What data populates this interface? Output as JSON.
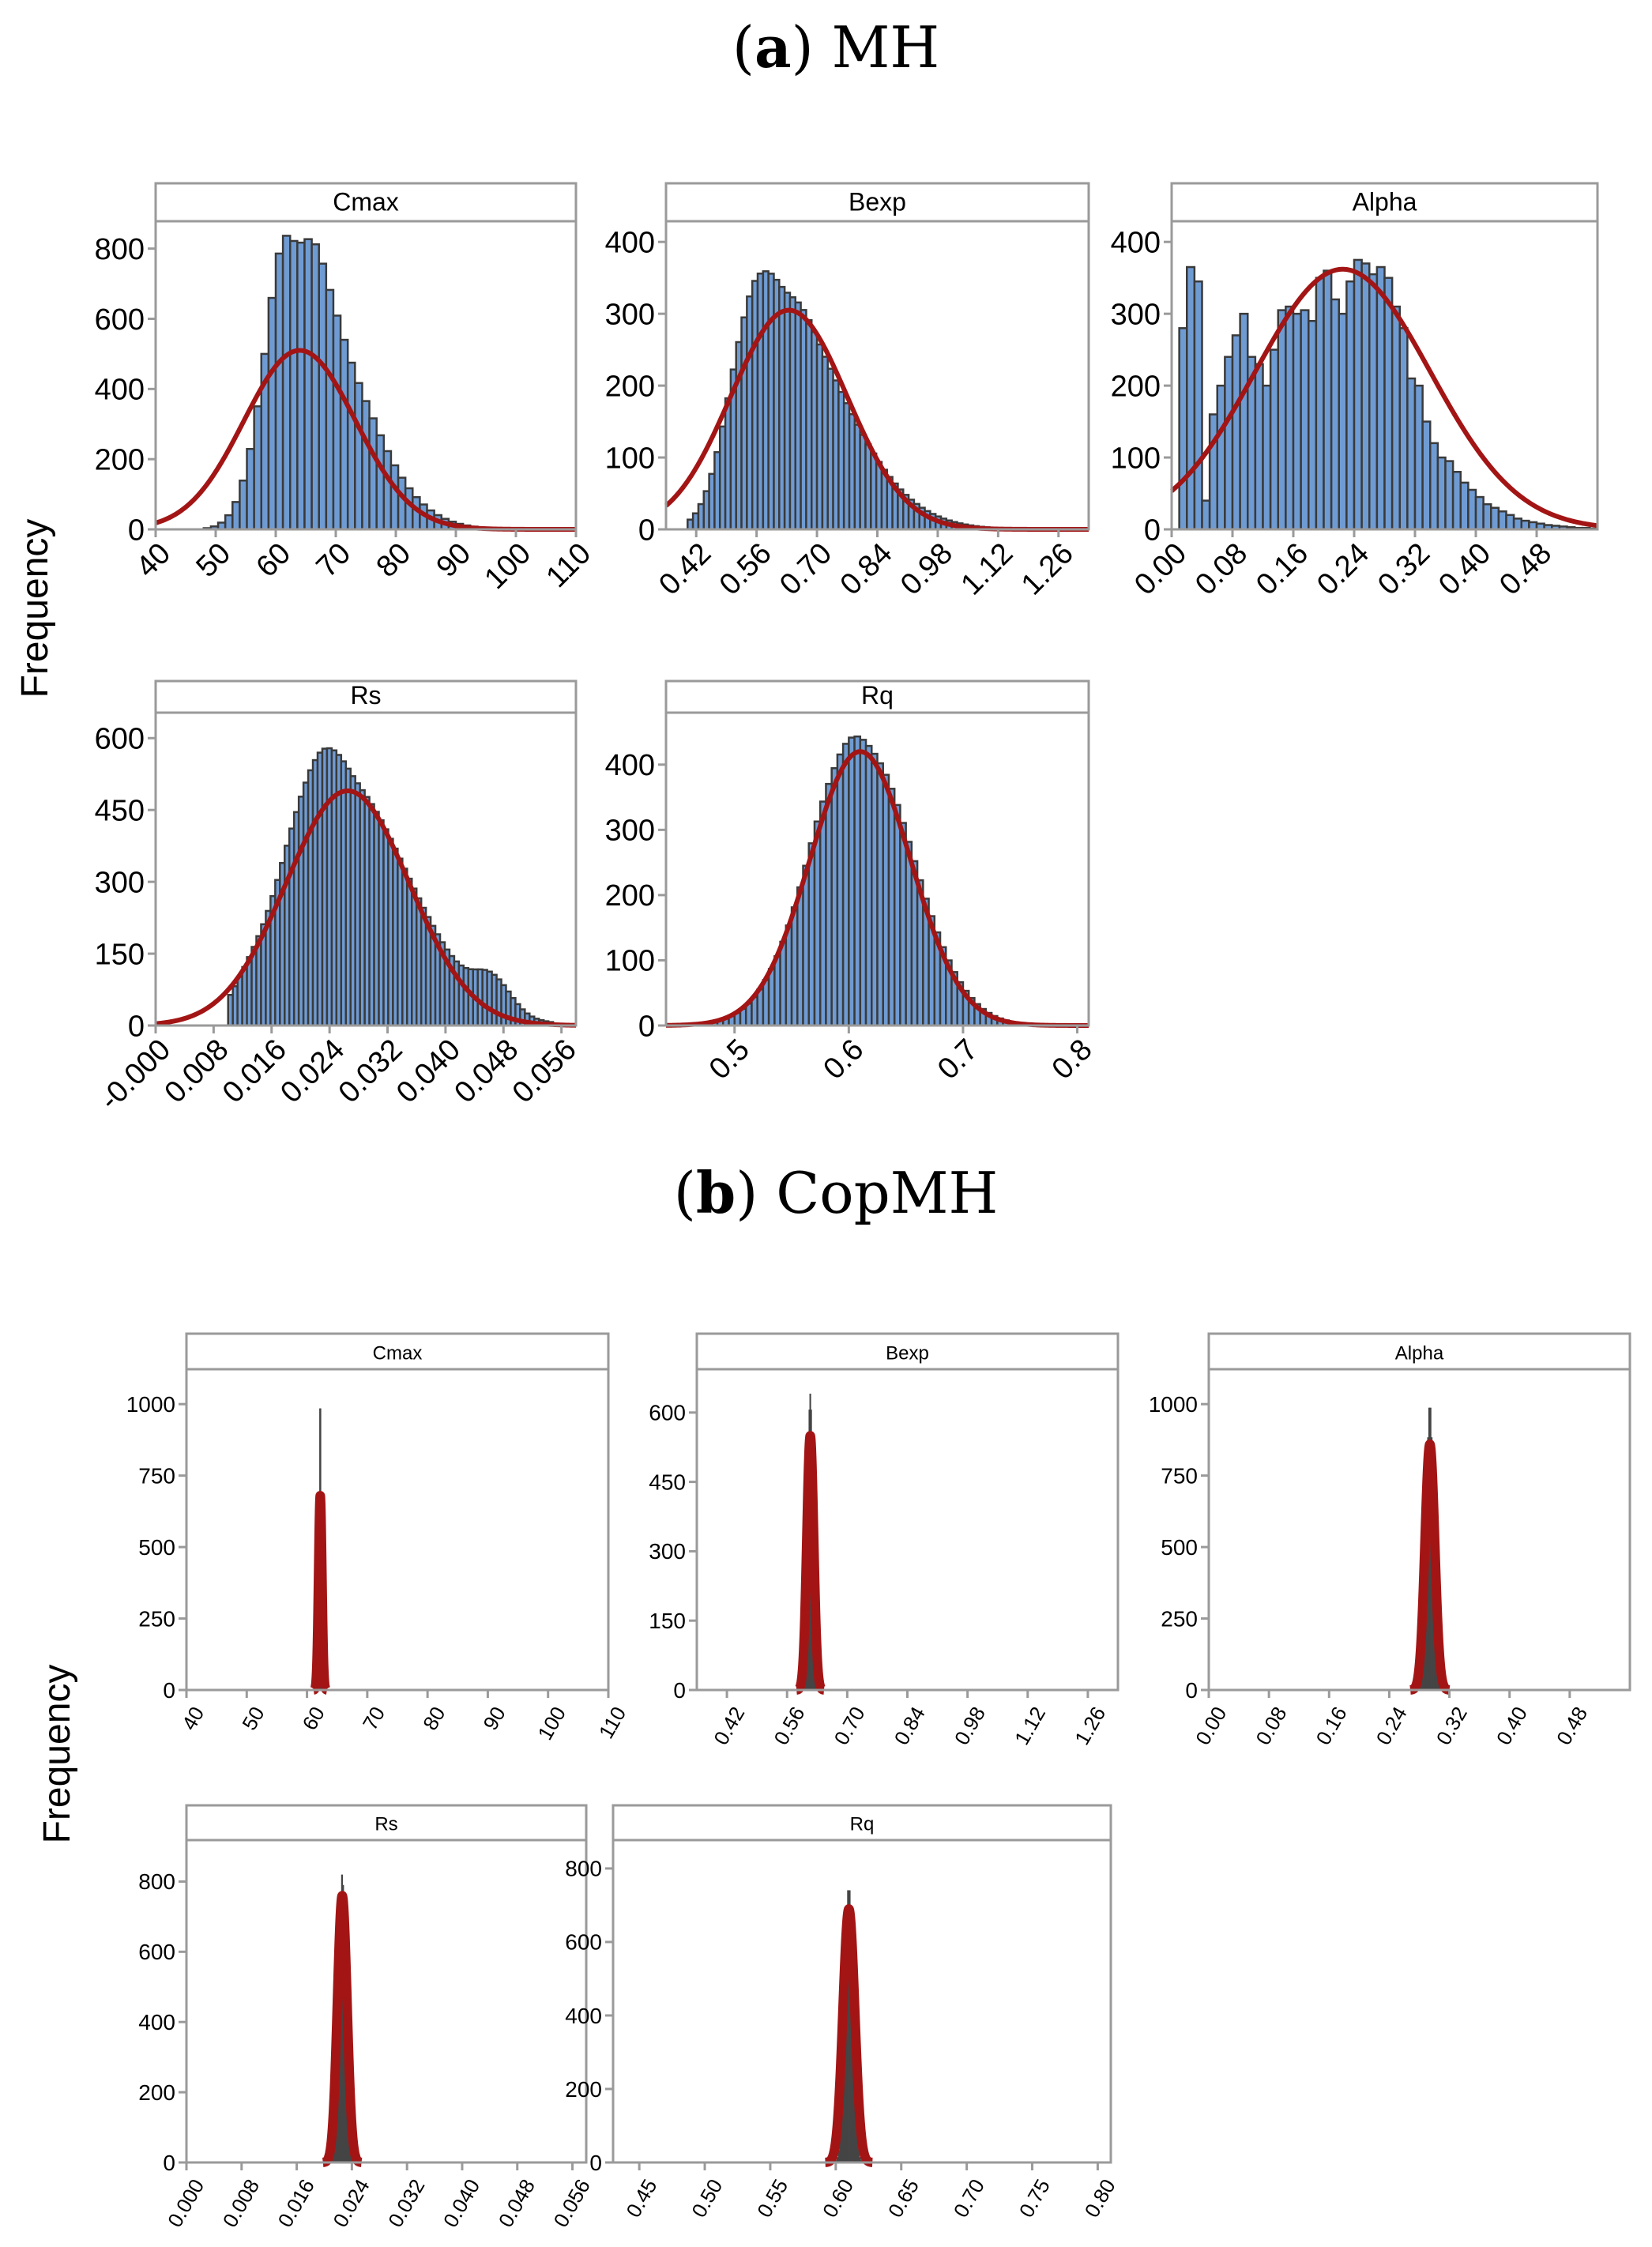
{
  "figure": {
    "ylabel": "Frequency",
    "colors": {
      "bar_fill": "#6f9bd3",
      "bar_stroke": "#3a3a3a",
      "spike_stroke": "#454545",
      "fit_curve": "#a31515",
      "frame": "#9a9a9a",
      "header_bg": "#ffffff",
      "text": "#000000"
    }
  },
  "sections": [
    {
      "id": "a",
      "letter": "a",
      "name": "MH"
    },
    {
      "id": "b",
      "letter": "b",
      "name": "CopMH"
    }
  ],
  "chart_data": [
    {
      "section": "a",
      "type": "bar",
      "title": "Cmax",
      "xlabel": "",
      "ylabel": "Frequency",
      "xlim": [
        40,
        110
      ],
      "ylim": [
        0,
        860
      ],
      "xticks": [
        40,
        50,
        60,
        70,
        80,
        90,
        100,
        110
      ],
      "xtick_labels": [
        "40",
        "50",
        "60",
        "70",
        "80",
        "90",
        "100",
        "110"
      ],
      "yticks": [
        0,
        200,
        400,
        600,
        800
      ],
      "ytick_labels": [
        "0",
        "200",
        "400",
        "600",
        "800"
      ],
      "bins": {
        "start": 48,
        "end": 104,
        "width": 1.2
      },
      "hist": {
        "kind": "skew",
        "mode": 62.5,
        "sd_left": 4.2,
        "sd_right": 10.0,
        "peak": 815,
        "bumps": [
          [
            61.5,
            40
          ],
          [
            63.0,
            -40
          ],
          [
            60.5,
            30
          ],
          [
            67.0,
            30
          ],
          [
            73.0,
            -15
          ],
          [
            66.0,
            40
          ]
        ]
      },
      "fit": {
        "mean": 64,
        "sd": 9.3,
        "peak": 510
      }
    },
    {
      "section": "a",
      "type": "bar",
      "title": "Bexp",
      "xlabel": "",
      "ylabel": "Frequency",
      "xlim": [
        0.35,
        1.33
      ],
      "ylim": [
        0,
        420
      ],
      "xticks": [
        0.42,
        0.56,
        0.7,
        0.84,
        0.98,
        1.12,
        1.26
      ],
      "xtick_labels": [
        "0.42",
        "0.56",
        "0.70",
        "0.84",
        "0.98",
        "1.12",
        "1.26"
      ],
      "yticks": [
        0,
        100,
        200,
        300,
        400
      ],
      "ytick_labels": [
        "0",
        "100",
        "200",
        "300",
        "400"
      ],
      "bins": {
        "start": 0.4,
        "end": 1.2,
        "width": 0.0125
      },
      "hist": {
        "kind": "skew",
        "mode": 0.565,
        "sd_left": 0.062,
        "sd_right": 0.17,
        "peak": 360,
        "bumps": [
          [
            0.545,
            -20
          ],
          [
            0.585,
            15
          ],
          [
            0.62,
            -15
          ],
          [
            0.66,
            10
          ]
        ]
      },
      "fit": {
        "mean": 0.635,
        "sd": 0.135,
        "peak": 305
      }
    },
    {
      "section": "a",
      "type": "bar",
      "title": "Alpha",
      "xlabel": "",
      "ylabel": "Frequency",
      "xlim": [
        0.0,
        0.56
      ],
      "ylim": [
        0,
        420
      ],
      "xticks": [
        0.0,
        0.08,
        0.16,
        0.24,
        0.32,
        0.4,
        0.48
      ],
      "xtick_labels": [
        "0.00",
        "0.08",
        "0.16",
        "0.24",
        "0.32",
        "0.40",
        "0.48"
      ],
      "yticks": [
        0,
        100,
        200,
        300,
        400
      ],
      "ytick_labels": [
        "0",
        "100",
        "200",
        "300",
        "400"
      ],
      "bins": {
        "start": 0.0,
        "end": 0.56,
        "width": 0.01
      },
      "hist": {
        "kind": "list",
        "values": [
          0,
          280,
          365,
          345,
          40,
          160,
          200,
          240,
          270,
          300,
          240,
          230,
          200,
          250,
          305,
          310,
          300,
          305,
          290,
          350,
          360,
          320,
          300,
          345,
          375,
          370,
          355,
          365,
          350,
          310,
          280,
          210,
          200,
          150,
          120,
          100,
          95,
          80,
          65,
          55,
          45,
          35,
          30,
          25,
          20,
          15,
          12,
          10,
          8,
          6,
          5,
          4,
          3,
          2,
          2,
          1
        ]
      },
      "fit": {
        "mean": 0.225,
        "sd": 0.115,
        "peak": 362
      }
    },
    {
      "section": "a",
      "type": "bar",
      "title": "Rs",
      "xlabel": "",
      "ylabel": "Frequency",
      "xlim": [
        0.0,
        0.058
      ],
      "ylim": [
        0,
        640
      ],
      "xticks": [
        0.0,
        0.008,
        0.016,
        0.024,
        0.032,
        0.04,
        0.048,
        0.056
      ],
      "xtick_labels": [
        "-0.000",
        "0.008",
        "0.016",
        "0.024",
        "0.032",
        "0.040",
        "0.048",
        "0.056"
      ],
      "yticks": [
        0,
        150,
        300,
        450,
        600
      ],
      "ytick_labels": [
        "0",
        "150",
        "300",
        "450",
        "600"
      ],
      "bins": {
        "start": 0.01,
        "end": 0.055,
        "width": 0.00065
      },
      "hist": {
        "kind": "skew",
        "mode": 0.0235,
        "sd_left": 0.006,
        "sd_right": 0.0105,
        "peak": 560,
        "bumps": [
          [
            0.0245,
            25
          ],
          [
            0.027,
            -15
          ],
          [
            0.0455,
            40
          ],
          [
            0.048,
            30
          ],
          [
            0.0125,
            25
          ]
        ]
      },
      "fit": {
        "mean": 0.0265,
        "sd": 0.0085,
        "peak": 490
      }
    },
    {
      "section": "a",
      "type": "bar",
      "title": "Rq",
      "xlabel": "",
      "ylabel": "Frequency",
      "xlim": [
        0.44,
        0.81
      ],
      "ylim": [
        0,
        470
      ],
      "xticks": [
        0.5,
        0.6,
        0.7,
        0.8
      ],
      "xtick_labels": [
        "0.5",
        "0.6",
        "0.7",
        "0.8"
      ],
      "yticks": [
        0,
        100,
        200,
        300,
        400
      ],
      "ytick_labels": [
        "0",
        "100",
        "200",
        "300",
        "400"
      ],
      "bins": {
        "start": 0.47,
        "end": 0.79,
        "width": 0.005
      },
      "hist": {
        "kind": "skew",
        "mode": 0.61,
        "sd_left": 0.043,
        "sd_right": 0.045,
        "peak": 440,
        "bumps": [
          [
            0.6,
            10
          ],
          [
            0.62,
            -8
          ],
          [
            0.575,
            12
          ]
        ]
      },
      "fit": {
        "mean": 0.61,
        "sd": 0.044,
        "peak": 420
      }
    },
    {
      "section": "b",
      "type": "bar",
      "title": "Cmax",
      "xlabel": "",
      "ylabel": "Frequency",
      "xlim": [
        40,
        110
      ],
      "ylim": [
        0,
        1100
      ],
      "xticks": [
        40,
        50,
        60,
        70,
        80,
        90,
        100,
        110
      ],
      "xtick_labels": [
        "40",
        "50",
        "60",
        "70",
        "80",
        "90",
        "100",
        "110"
      ],
      "yticks": [
        0,
        250,
        500,
        750,
        1000
      ],
      "ytick_labels": [
        "0",
        "250",
        "500",
        "750",
        "1000"
      ],
      "bins": {
        "start": 61.2,
        "end": 63.2,
        "width": 0.1
      },
      "hist": {
        "kind": "skew",
        "mode": 62.2,
        "sd_left": 0.15,
        "sd_right": 0.15,
        "peak": 1040,
        "bumps": []
      },
      "fit": {
        "mean": 62.2,
        "sd": 0.28,
        "peak": 680
      }
    },
    {
      "section": "b",
      "type": "bar",
      "title": "Bexp",
      "xlabel": "",
      "ylabel": "Frequency",
      "xlim": [
        0.35,
        1.33
      ],
      "ylim": [
        0,
        680
      ],
      "xticks": [
        0.42,
        0.56,
        0.7,
        0.84,
        0.98,
        1.12,
        1.26
      ],
      "xtick_labels": [
        "0.42",
        "0.56",
        "0.70",
        "0.84",
        "0.98",
        "1.12",
        "1.26"
      ],
      "yticks": [
        0,
        150,
        300,
        450,
        600
      ],
      "ytick_labels": [
        "0",
        "150",
        "300",
        "450",
        "600"
      ],
      "bins": {
        "start": 0.575,
        "end": 0.655,
        "width": 0.002
      },
      "hist": {
        "kind": "skew",
        "mode": 0.614,
        "sd_left": 0.006,
        "sd_right": 0.006,
        "peak": 640,
        "bumps": []
      },
      "fit": {
        "mean": 0.614,
        "sd": 0.008,
        "peak": 550
      }
    },
    {
      "section": "b",
      "type": "bar",
      "title": "Alpha",
      "xlabel": "",
      "ylabel": "Frequency",
      "xlim": [
        0.0,
        0.56
      ],
      "ylim": [
        0,
        1100
      ],
      "xticks": [
        0.0,
        0.08,
        0.16,
        0.24,
        0.32,
        0.4,
        0.48
      ],
      "xtick_labels": [
        "0.00",
        "0.08",
        "0.16",
        "0.24",
        "0.32",
        "0.40",
        "0.48"
      ],
      "yticks": [
        0,
        250,
        500,
        750,
        1000
      ],
      "ytick_labels": [
        "0",
        "250",
        "500",
        "750",
        "1000"
      ],
      "bins": {
        "start": 0.27,
        "end": 0.32,
        "width": 0.0015
      },
      "hist": {
        "kind": "skew",
        "mode": 0.294,
        "sd_left": 0.0045,
        "sd_right": 0.0045,
        "peak": 1000,
        "bumps": []
      },
      "fit": {
        "mean": 0.294,
        "sd": 0.0065,
        "peak": 860
      }
    },
    {
      "section": "b",
      "type": "bar",
      "title": "Rs",
      "xlabel": "",
      "ylabel": "Frequency",
      "xlim": [
        0.0,
        0.058
      ],
      "ylim": [
        0,
        900
      ],
      "xticks": [
        0.0,
        0.008,
        0.016,
        0.024,
        0.032,
        0.04,
        0.048,
        0.056
      ],
      "xtick_labels": [
        "0.000",
        "0.008",
        "0.016",
        "0.024",
        "0.032",
        "0.040",
        "0.048",
        "0.056"
      ],
      "yticks": [
        0,
        200,
        400,
        600,
        800
      ],
      "ytick_labels": [
        "0",
        "200",
        "400",
        "600",
        "800"
      ],
      "bins": {
        "start": 0.0195,
        "end": 0.0255,
        "width": 0.00015
      },
      "hist": {
        "kind": "skew",
        "mode": 0.0226,
        "sd_left": 0.00045,
        "sd_right": 0.00045,
        "peak": 820,
        "bumps": []
      },
      "fit": {
        "mean": 0.0226,
        "sd": 0.0007,
        "peak": 760
      }
    },
    {
      "section": "b",
      "type": "bar",
      "title": "Rq",
      "xlabel": "",
      "ylabel": "Frequency",
      "xlim": [
        0.43,
        0.81
      ],
      "ylim": [
        0,
        860
      ],
      "xticks": [
        0.45,
        0.5,
        0.55,
        0.6,
        0.65,
        0.7,
        0.75,
        0.8
      ],
      "xtick_labels": [
        "0.45",
        "0.50",
        "0.55",
        "0.60",
        "0.65",
        "0.70",
        "0.75",
        "0.80"
      ],
      "yticks": [
        0,
        200,
        400,
        600,
        800
      ],
      "ytick_labels": [
        "0",
        "200",
        "400",
        "600",
        "800"
      ],
      "bins": {
        "start": 0.595,
        "end": 0.628,
        "width": 0.001
      },
      "hist": {
        "kind": "skew",
        "mode": 0.61,
        "sd_left": 0.003,
        "sd_right": 0.003,
        "peak": 750,
        "bumps": []
      },
      "fit": {
        "mean": 0.61,
        "sd": 0.0045,
        "peak": 690
      }
    }
  ]
}
